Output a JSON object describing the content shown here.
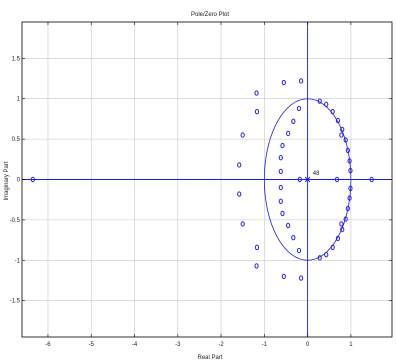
{
  "chart_data": {
    "type": "scatter",
    "title": "Pole/Zero Plot",
    "xlabel": "Real Part",
    "ylabel": "Imaginary Part",
    "xlim": [
      -6.6,
      1.95
    ],
    "ylim": [
      -1.95,
      1.95
    ],
    "xticks": [
      -6,
      -5,
      -4,
      -3,
      -2,
      -1,
      0,
      1
    ],
    "yticks": [
      -1.5,
      -1,
      -0.5,
      0,
      0.5,
      1,
      1.5
    ],
    "xtick_labels": [
      "-6",
      "-5",
      "-4",
      "-3",
      "-2",
      "-1",
      "0",
      "1"
    ],
    "ytick_labels": [
      "-1.5",
      "-1",
      "-0.5",
      "0",
      "0.5",
      "1",
      "1.5"
    ],
    "grid": true,
    "unit_circle": true,
    "colors": {
      "marks": "#1f1fe0",
      "grid": "#c8c8c8",
      "axes": "#000000"
    },
    "series": [
      {
        "marker": "circle",
        "points": [
          [
            -6.35,
            0
          ],
          [
            1.48,
            0
          ],
          [
            0.68,
            0
          ],
          [
            -0.18,
            0
          ],
          [
            -0.15,
            1.22
          ],
          [
            -0.15,
            -1.22
          ],
          [
            -0.55,
            1.2
          ],
          [
            -0.55,
            -1.2
          ],
          [
            -1.18,
            1.07
          ],
          [
            -1.18,
            -1.07
          ],
          [
            -1.17,
            0.84
          ],
          [
            -1.17,
            -0.84
          ],
          [
            -1.5,
            0.55
          ],
          [
            -1.5,
            -0.55
          ],
          [
            -1.58,
            0.18
          ],
          [
            -1.58,
            -0.18
          ],
          [
            -0.2,
            0.88
          ],
          [
            -0.2,
            -0.88
          ],
          [
            -0.33,
            0.72
          ],
          [
            -0.33,
            -0.72
          ],
          [
            -0.45,
            0.57
          ],
          [
            -0.45,
            -0.57
          ],
          [
            -0.58,
            0.42
          ],
          [
            -0.58,
            -0.42
          ],
          [
            -0.62,
            0.27
          ],
          [
            -0.62,
            -0.27
          ],
          [
            -0.62,
            0.1
          ],
          [
            -0.62,
            -0.1
          ],
          [
            0.28,
            0.97
          ],
          [
            0.28,
            -0.97
          ],
          [
            0.43,
            0.93
          ],
          [
            0.43,
            -0.93
          ],
          [
            0.58,
            0.84
          ],
          [
            0.58,
            -0.84
          ],
          [
            0.7,
            0.73
          ],
          [
            0.7,
            -0.73
          ],
          [
            0.8,
            0.62
          ],
          [
            0.8,
            -0.62
          ],
          [
            0.88,
            0.49
          ],
          [
            0.88,
            -0.49
          ],
          [
            0.93,
            0.36
          ],
          [
            0.93,
            -0.36
          ],
          [
            0.97,
            0.23
          ],
          [
            0.97,
            -0.23
          ],
          [
            0.99,
            0.11
          ],
          [
            0.99,
            -0.11
          ],
          [
            0.78,
            0.55
          ],
          [
            0.78,
            -0.55
          ]
        ]
      },
      {
        "marker": "x",
        "points": [
          [
            0,
            0
          ]
        ]
      }
    ],
    "annotations": [
      {
        "text": "48",
        "x": 0.05,
        "y": 0.02
      }
    ]
  }
}
